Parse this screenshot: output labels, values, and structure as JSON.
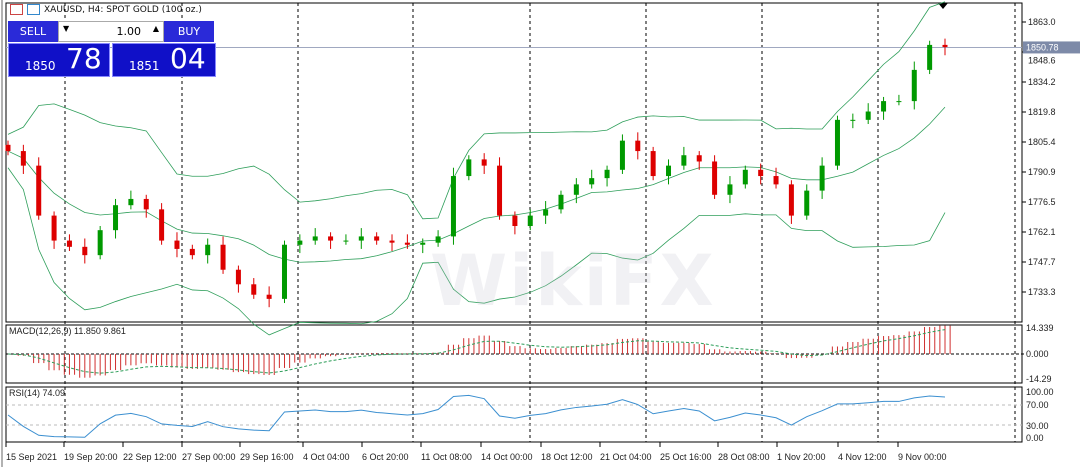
{
  "window": {
    "title": "XAUUSD, H4:  SPOT GOLD (100 oz.)"
  },
  "trade_panel": {
    "sell_label": "SELL",
    "buy_label": "BUY",
    "lot": "1.00",
    "sell_big": "1850",
    "sell_small": "78",
    "buy_big": "1851",
    "buy_small": "04"
  },
  "watermark": "WikiFX",
  "colors": {
    "bull": "#009900",
    "bear": "#dd0000",
    "bands": "#2e9e5a",
    "macd_hist": "#d03030",
    "macd_signal": "#2e9e5a",
    "rsi": "#3b8fd0",
    "price_line": "#a0a8c0"
  },
  "chart_data": {
    "type": "candlestick",
    "symbol": "XAUUSD",
    "timeframe": "H4",
    "y_ticks": [
      "1863.0",
      "1848.6",
      "1834.2",
      "1819.8",
      "1805.4",
      "1790.9",
      "1776.5",
      "1762.1",
      "1747.7",
      "1733.3"
    ],
    "ylim": [
      1722,
      1872
    ],
    "current_price": "1850.78",
    "x_ticks": [
      "15 Sep 2021",
      "19 Sep 20:00",
      "22 Sep 12:00",
      "27 Sep 00:00",
      "29 Sep 16:00",
      "4 Oct 04:00",
      "6 Oct 20:00",
      "11 Oct 08:00",
      "14 Oct 00:00",
      "18 Oct 12:00",
      "21 Oct 04:00",
      "25 Oct 16:00",
      "28 Oct 08:00",
      "1 Nov 20:00",
      "4 Nov 12:00",
      "9 Nov 00:00"
    ],
    "closes": [
      1801,
      1794,
      1770,
      1758,
      1755,
      1751,
      1763,
      1775,
      1778,
      1773,
      1758,
      1754,
      1751,
      1756,
      1744,
      1737,
      1732,
      1730,
      1756,
      1758,
      1760,
      1758,
      1758,
      1760,
      1758,
      1757,
      1756,
      1757,
      1760,
      1789,
      1797,
      1794,
      1770,
      1765,
      1770,
      1773,
      1780,
      1785,
      1788,
      1792,
      1806,
      1801,
      1789,
      1794,
      1799,
      1796,
      1780,
      1785,
      1792,
      1789,
      1785,
      1770,
      1782,
      1794,
      1816,
      1816,
      1820,
      1825,
      1825,
      1840,
      1852,
      1851
    ],
    "indicators": {
      "bollinger": "Bollinger Bands",
      "macd": {
        "label": "MACD(12,26,9) 11.850 9.861",
        "ticks": [
          "14.339",
          "0.000",
          "-14.29"
        ]
      },
      "rsi": {
        "label": "RSI(14) 74.09",
        "ticks": [
          "100.00",
          "70.00",
          "30.00",
          "0.00"
        ]
      }
    }
  }
}
